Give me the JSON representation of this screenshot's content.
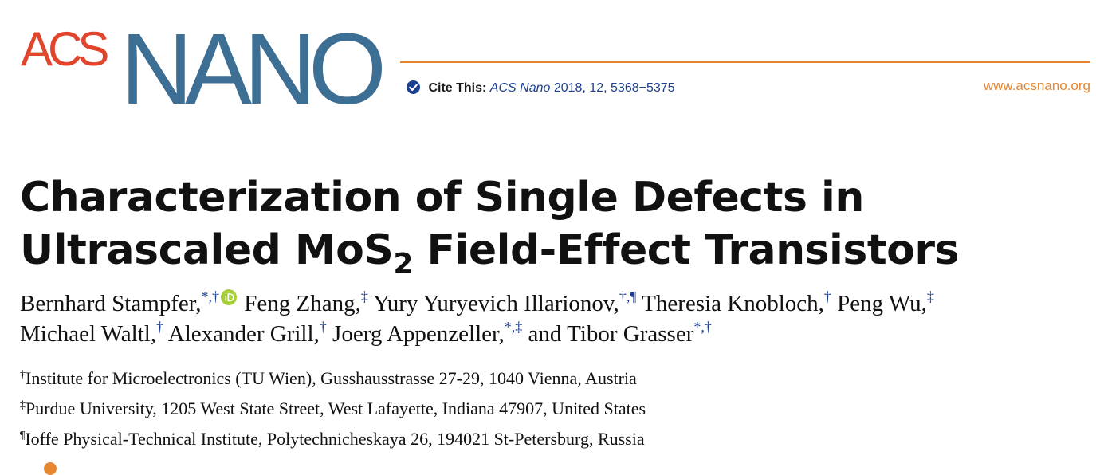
{
  "colors": {
    "acs_red": "#e0452e",
    "nano_blue": "#3d6e93",
    "rule_orange": "#e8862f",
    "link_blue": "#1c3f8f",
    "orcid_green": "#a6ce39"
  },
  "header": {
    "logo_acs": "ACS",
    "logo_nano": "NANO",
    "cite_icon": "check-circle-icon",
    "cite_label": "Cite This:",
    "cite_journal": "ACS Nano",
    "cite_rest": "2018, 12, 5368−5375",
    "website": "www.acsnano.org"
  },
  "article": {
    "title_line1": "Characterization of Single Defects in",
    "title_line2_pre": "Ultrascaled MoS",
    "title_line2_sub": "2",
    "title_line2_post": " Field-Effect Transistors",
    "authors": [
      {
        "name": "Bernhard Stampfer,",
        "marks": "*,†",
        "orcid": true
      },
      {
        "name": "Feng Zhang,",
        "marks": "‡"
      },
      {
        "name": "Yury Yuryevich Illarionov,",
        "marks": "†,¶"
      },
      {
        "name": "Theresia Knobloch,",
        "marks": "†"
      },
      {
        "name": "Peng Wu,",
        "marks": "‡"
      },
      {
        "name": "Michael Waltl,",
        "marks": "†"
      },
      {
        "name": "Alexander Grill,",
        "marks": "†"
      },
      {
        "name": "Joerg Appenzeller,",
        "marks": "*,‡"
      },
      {
        "name": "and Tibor Grasser",
        "marks": "*,†"
      }
    ],
    "affiliations": [
      {
        "mark": "†",
        "text": "Institute for Microelectronics (TU Wien), Gusshausstrasse 27-29, 1040 Vienna, Austria"
      },
      {
        "mark": "‡",
        "text": "Purdue University, 1205 West State Street, West Lafayette, Indiana 47907, United States"
      },
      {
        "mark": "¶",
        "text": "Ioffe Physical-Technical Institute, Polytechnicheskaya 26, 194021 St-Petersburg, Russia"
      }
    ]
  }
}
